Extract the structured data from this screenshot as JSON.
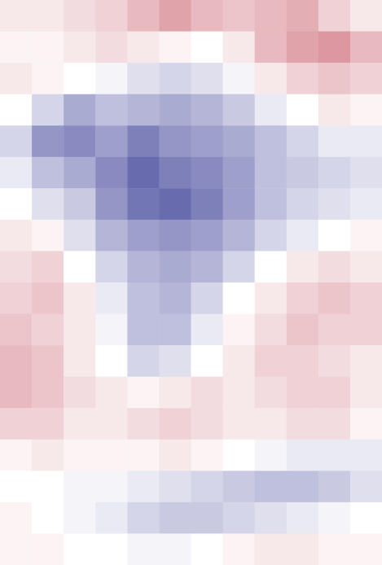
{
  "chart_data": {
    "type": "heatmap",
    "cells": [
      [
        0.1,
        0.1,
        0.15,
        0.2,
        0.3,
        0.4,
        0.3,
        0.25,
        0.3,
        0.35,
        0.2,
        0.1
      ],
      [
        0.05,
        0.05,
        0.1,
        0.15,
        0.1,
        0.05,
        0.0,
        0.1,
        0.3,
        0.4,
        0.45,
        0.3
      ],
      [
        0.1,
        0.05,
        0.0,
        -0.05,
        -0.15,
        -0.2,
        -0.15,
        -0.05,
        0.1,
        0.2,
        0.25,
        0.2
      ],
      [
        0.0,
        -0.2,
        -0.4,
        -0.3,
        -0.35,
        -0.4,
        -0.35,
        -0.25,
        -0.1,
        0.0,
        0.1,
        0.05
      ],
      [
        -0.2,
        -0.5,
        -0.55,
        -0.45,
        -0.6,
        -0.5,
        -0.45,
        -0.4,
        -0.3,
        -0.2,
        -0.1,
        -0.1
      ],
      [
        -0.1,
        -0.3,
        -0.4,
        -0.55,
        -0.7,
        -0.6,
        -0.55,
        -0.45,
        -0.3,
        -0.25,
        -0.2,
        -0.15
      ],
      [
        0.0,
        -0.15,
        -0.25,
        -0.5,
        -0.65,
        -0.7,
        -0.6,
        -0.45,
        -0.3,
        -0.2,
        -0.15,
        -0.1
      ],
      [
        0.1,
        0.05,
        -0.15,
        -0.35,
        -0.45,
        -0.5,
        -0.45,
        -0.35,
        -0.2,
        -0.1,
        0.0,
        0.05
      ],
      [
        0.15,
        0.2,
        0.0,
        -0.2,
        -0.35,
        -0.4,
        -0.35,
        -0.2,
        0.0,
        0.1,
        0.15,
        0.1
      ],
      [
        0.2,
        0.25,
        0.1,
        -0.1,
        -0.3,
        -0.35,
        -0.2,
        0.0,
        0.1,
        0.2,
        0.25,
        0.2
      ],
      [
        0.25,
        0.2,
        0.1,
        -0.05,
        -0.3,
        -0.3,
        -0.1,
        0.05,
        0.15,
        0.25,
        0.2,
        0.2
      ],
      [
        0.3,
        0.25,
        0.1,
        0.0,
        -0.2,
        -0.15,
        0.0,
        0.1,
        0.2,
        0.2,
        0.15,
        0.1
      ],
      [
        0.3,
        0.25,
        0.15,
        0.1,
        0.05,
        0.1,
        0.15,
        0.1,
        0.15,
        0.2,
        0.2,
        0.1
      ],
      [
        0.2,
        0.2,
        0.1,
        0.1,
        0.15,
        0.2,
        0.15,
        0.1,
        0.1,
        0.15,
        0.15,
        0.05
      ],
      [
        0.05,
        0.1,
        0.05,
        0.05,
        0.05,
        0.1,
        0.05,
        0.0,
        -0.05,
        -0.1,
        -0.1,
        -0.1
      ],
      [
        0.0,
        0.0,
        -0.05,
        -0.05,
        -0.1,
        -0.15,
        -0.2,
        -0.25,
        -0.3,
        -0.3,
        -0.25,
        -0.15
      ],
      [
        0.05,
        0.0,
        -0.05,
        -0.1,
        -0.2,
        -0.25,
        -0.25,
        -0.2,
        -0.15,
        -0.1,
        -0.05,
        0.0
      ],
      [
        0.05,
        0.05,
        0.0,
        0.0,
        -0.05,
        -0.05,
        0.0,
        0.05,
        0.1,
        0.1,
        0.05,
        0.05
      ]
    ],
    "zlim": [
      -1,
      1
    ],
    "tick_labels": false
  }
}
